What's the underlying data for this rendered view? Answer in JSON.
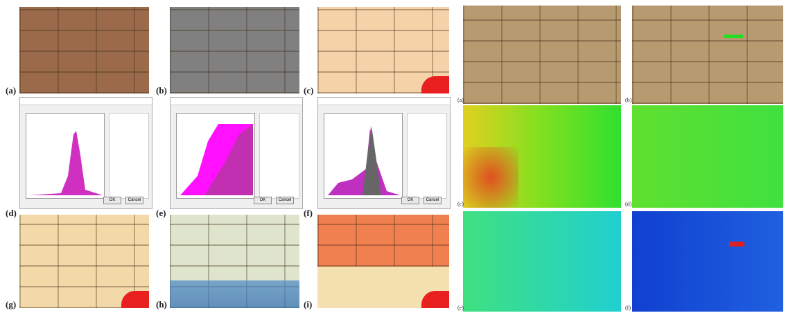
{
  "left_panels": {
    "labels": [
      "(a)",
      "(b)",
      "(c)",
      "(d)",
      "(e)",
      "(f)",
      "(g)",
      "(h)",
      "(i)"
    ]
  },
  "right_panels": {
    "labels": [
      "(a)",
      "(b)",
      "(c)",
      "(d)",
      "(e)",
      "(f)"
    ]
  },
  "dialog": {
    "ok": "OK",
    "cancel": "Cancel"
  }
}
